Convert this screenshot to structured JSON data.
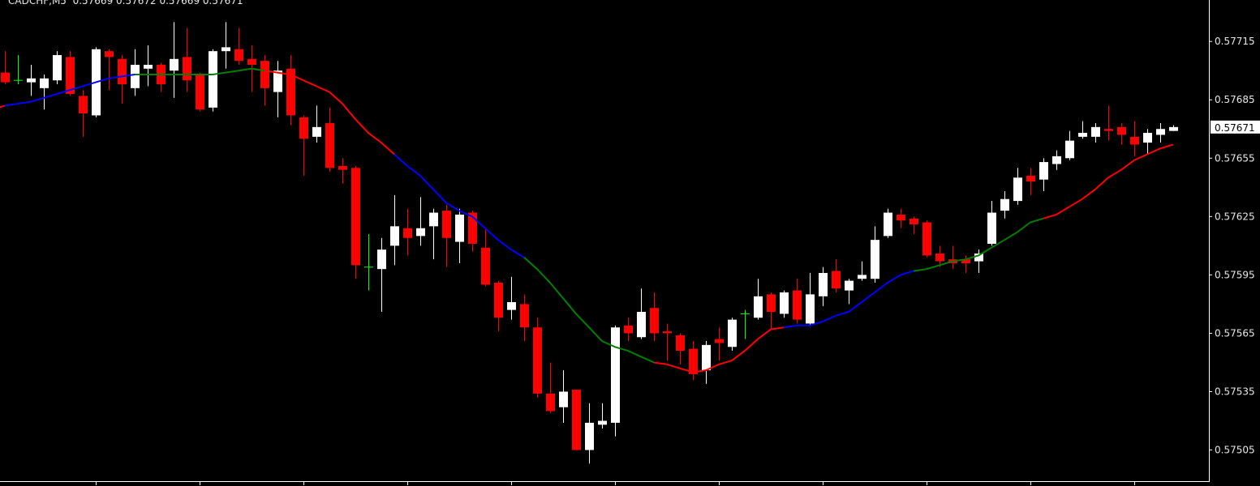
{
  "header": {
    "symbol": "CADCHF,M5",
    "ohlc": "0.57669 0.57672 0.57669 0.57671"
  },
  "colors": {
    "background": "#000000",
    "bull": "#ffffff",
    "bear": "#ff0000",
    "doji": "#00ff00",
    "axis": "#ffffff",
    "ma_red": "#ff0000",
    "ma_blue": "#0000ff",
    "ma_green": "#008000"
  },
  "chart_data": {
    "type": "candlestick",
    "title": "CADCHF,M5",
    "ylim": [
      0.57489,
      0.577363
    ],
    "y_ticks": [
      "0.57715",
      "0.57685",
      "0.57655",
      "0.57625",
      "0.57595",
      "0.57565",
      "0.57535",
      "0.57505"
    ],
    "current_price": "0.57671",
    "grid": false,
    "candles": [
      [
        0.57699,
        0.5771,
        0.57693,
        0.57694
      ],
      [
        0.57695,
        0.57708,
        0.57693,
        0.57695
      ],
      [
        0.57694,
        0.57703,
        0.57687,
        0.57696
      ],
      [
        0.57691,
        0.57698,
        0.5768,
        0.57696
      ],
      [
        0.57695,
        0.5771,
        0.57693,
        0.57708
      ],
      [
        0.57707,
        0.5771,
        0.57687,
        0.57688
      ],
      [
        0.57687,
        0.5769,
        0.57666,
        0.57678
      ],
      [
        0.57677,
        0.57712,
        0.57676,
        0.57711
      ],
      [
        0.5771,
        0.57711,
        0.5769,
        0.57707
      ],
      [
        0.57706,
        0.57708,
        0.57683,
        0.57693
      ],
      [
        0.57691,
        0.57711,
        0.57687,
        0.57703
      ],
      [
        0.57701,
        0.57713,
        0.57692,
        0.57703
      ],
      [
        0.57703,
        0.57704,
        0.57689,
        0.57693
      ],
      [
        0.577,
        0.57725,
        0.57686,
        0.57706
      ],
      [
        0.57707,
        0.57722,
        0.57689,
        0.57695
      ],
      [
        0.57698,
        0.57699,
        0.57679,
        0.5768
      ],
      [
        0.57681,
        0.57711,
        0.57679,
        0.5771
      ],
      [
        0.5771,
        0.57725,
        0.57701,
        0.57712
      ],
      [
        0.57711,
        0.57722,
        0.57703,
        0.57705
      ],
      [
        0.57706,
        0.57713,
        0.57689,
        0.57703
      ],
      [
        0.57705,
        0.57708,
        0.57682,
        0.57691
      ],
      [
        0.57689,
        0.57705,
        0.57676,
        0.577
      ],
      [
        0.57701,
        0.57708,
        0.57672,
        0.57677
      ],
      [
        0.57676,
        0.57677,
        0.57646,
        0.57665
      ],
      [
        0.57666,
        0.57682,
        0.57663,
        0.57671
      ],
      [
        0.57673,
        0.57681,
        0.57648,
        0.5765
      ],
      [
        0.57651,
        0.57655,
        0.57642,
        0.57649
      ],
      [
        0.5765,
        0.57651,
        0.57593,
        0.576
      ],
      [
        0.57599,
        0.57616,
        0.57587,
        0.57599
      ],
      [
        0.57598,
        0.57614,
        0.57576,
        0.57608
      ],
      [
        0.5761,
        0.57636,
        0.576,
        0.5762
      ],
      [
        0.57619,
        0.57629,
        0.57605,
        0.57614
      ],
      [
        0.57615,
        0.57635,
        0.5761,
        0.57619
      ],
      [
        0.5762,
        0.57629,
        0.57603,
        0.57627
      ],
      [
        0.57628,
        0.57631,
        0.57599,
        0.57614
      ],
      [
        0.57612,
        0.57629,
        0.57601,
        0.57626
      ],
      [
        0.57627,
        0.57628,
        0.57607,
        0.57611
      ],
      [
        0.57609,
        0.57619,
        0.57589,
        0.5759
      ],
      [
        0.57591,
        0.57592,
        0.57566,
        0.57573
      ],
      [
        0.57577,
        0.57594,
        0.57572,
        0.57581
      ],
      [
        0.5758,
        0.57585,
        0.57561,
        0.57568
      ],
      [
        0.57568,
        0.57573,
        0.57532,
        0.57534
      ],
      [
        0.57534,
        0.5755,
        0.57524,
        0.57525
      ],
      [
        0.57527,
        0.57546,
        0.57519,
        0.57535
      ],
      [
        0.57536,
        0.57536,
        0.57505,
        0.57505
      ],
      [
        0.57505,
        0.57529,
        0.57498,
        0.57519
      ],
      [
        0.57518,
        0.57529,
        0.57516,
        0.5752
      ],
      [
        0.57519,
        0.57569,
        0.57512,
        0.57568
      ],
      [
        0.57569,
        0.57573,
        0.57561,
        0.57565
      ],
      [
        0.57563,
        0.57588,
        0.57562,
        0.57576
      ],
      [
        0.57578,
        0.57586,
        0.57561,
        0.57565
      ],
      [
        0.57566,
        0.5757,
        0.57551,
        0.57565
      ],
      [
        0.57564,
        0.57565,
        0.57549,
        0.57556
      ],
      [
        0.57557,
        0.57561,
        0.57541,
        0.57544
      ],
      [
        0.57546,
        0.57561,
        0.57539,
        0.57559
      ],
      [
        0.57562,
        0.57568,
        0.57551,
        0.5756
      ],
      [
        0.57558,
        0.57573,
        0.57556,
        0.57572
      ],
      [
        0.57575,
        0.57577,
        0.57562,
        0.57575
      ],
      [
        0.57573,
        0.57593,
        0.57572,
        0.57584
      ],
      [
        0.57585,
        0.57586,
        0.57567,
        0.57576
      ],
      [
        0.57575,
        0.57587,
        0.57573,
        0.57586
      ],
      [
        0.57587,
        0.57593,
        0.5757,
        0.57572
      ],
      [
        0.5757,
        0.57596,
        0.57569,
        0.57585
      ],
      [
        0.57584,
        0.57599,
        0.57579,
        0.57596
      ],
      [
        0.57597,
        0.57603,
        0.57586,
        0.57588
      ],
      [
        0.57587,
        0.57593,
        0.5758,
        0.57592
      ],
      [
        0.57593,
        0.57602,
        0.57592,
        0.57595
      ],
      [
        0.57593,
        0.5762,
        0.57591,
        0.57613
      ],
      [
        0.57615,
        0.57629,
        0.57614,
        0.57627
      ],
      [
        0.57626,
        0.57629,
        0.57619,
        0.57623
      ],
      [
        0.57624,
        0.57625,
        0.57616,
        0.57621
      ],
      [
        0.57622,
        0.57623,
        0.57604,
        0.57605
      ],
      [
        0.57606,
        0.5761,
        0.57599,
        0.57602
      ],
      [
        0.57603,
        0.5761,
        0.57598,
        0.57601
      ],
      [
        0.57603,
        0.57605,
        0.57596,
        0.57601
      ],
      [
        0.57602,
        0.57608,
        0.57596,
        0.57606
      ],
      [
        0.57611,
        0.57633,
        0.5761,
        0.57627
      ],
      [
        0.57628,
        0.57638,
        0.57624,
        0.57634
      ],
      [
        0.57633,
        0.5765,
        0.57631,
        0.57645
      ],
      [
        0.57646,
        0.5765,
        0.57636,
        0.57643
      ],
      [
        0.57644,
        0.57655,
        0.57638,
        0.57653
      ],
      [
        0.57652,
        0.57659,
        0.57649,
        0.57656
      ],
      [
        0.57655,
        0.57669,
        0.57654,
        0.57664
      ],
      [
        0.57666,
        0.57674,
        0.57665,
        0.57668
      ],
      [
        0.57666,
        0.57673,
        0.57663,
        0.57671
      ],
      [
        0.5767,
        0.57682,
        0.57664,
        0.57669
      ],
      [
        0.57671,
        0.57673,
        0.57662,
        0.57667
      ],
      [
        0.57666,
        0.57674,
        0.57656,
        0.57662
      ],
      [
        0.57663,
        0.5767,
        0.57657,
        0.57668
      ],
      [
        0.57667,
        0.57673,
        0.57663,
        0.5767
      ],
      [
        0.57669,
        0.57672,
        0.57669,
        0.57671
      ]
    ],
    "moving_average": [
      0.57682,
      0.57683,
      0.57684,
      0.57686,
      0.57688,
      0.5769,
      0.57692,
      0.57694,
      0.57696,
      0.57697,
      0.57698,
      0.57698,
      0.57698,
      0.57698,
      0.57698,
      0.57698,
      0.57698,
      0.57699,
      0.577,
      0.57701,
      0.577,
      0.57699,
      0.57698,
      0.57695,
      0.57692,
      0.57689,
      0.57683,
      0.57675,
      0.57668,
      0.57663,
      0.57657,
      0.57651,
      0.57646,
      0.57639,
      0.57632,
      0.57628,
      0.57625,
      0.57619,
      0.57613,
      0.57608,
      0.57604,
      0.57598,
      0.57591,
      0.57583,
      0.57575,
      0.57568,
      0.57561,
      0.57558,
      0.57556,
      0.57553,
      0.5755,
      0.57549,
      0.57547,
      0.57545,
      0.57546,
      0.57549,
      0.57551,
      0.57556,
      0.57562,
      0.57567,
      0.57568,
      0.57569,
      0.57569,
      0.57571,
      0.57574,
      0.57576,
      0.57581,
      0.57586,
      0.57591,
      0.57595,
      0.57597,
      0.57598,
      0.576,
      0.57602,
      0.57603,
      0.57605,
      0.57609,
      0.57613,
      0.57617,
      0.57622,
      0.57624,
      0.57626,
      0.5763,
      0.57634,
      0.57639,
      0.57645,
      0.57649,
      0.57654,
      0.57657,
      0.5766,
      0.57662
    ],
    "ma_segment_colors": [
      "blue",
      "green",
      "red",
      "blue",
      "green",
      "red",
      "blue",
      "green",
      "red"
    ],
    "ma_segment_length": 10
  }
}
